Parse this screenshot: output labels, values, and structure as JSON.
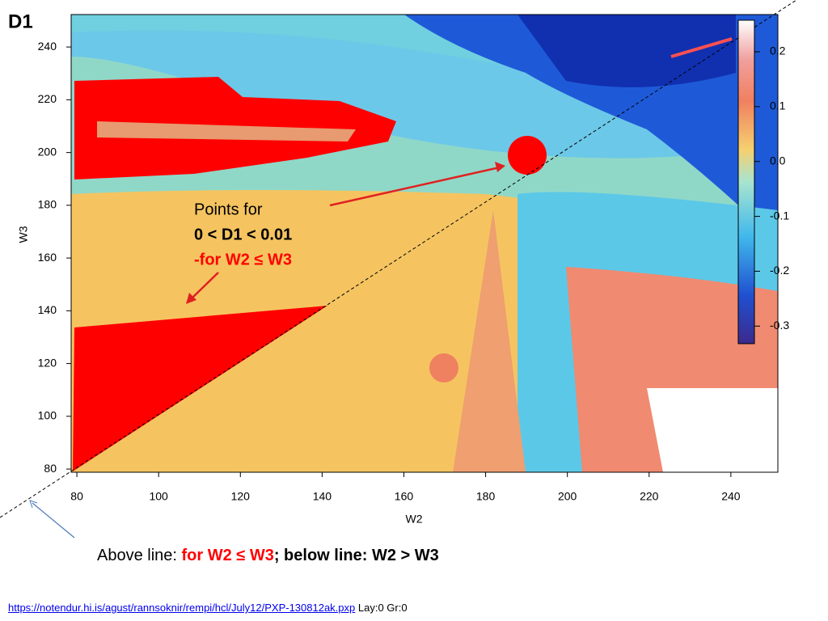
{
  "chart_data": {
    "type": "heatmap",
    "title": "D1",
    "xlabel": "W2",
    "ylabel": "W3",
    "xlim": [
      78.6,
      251.5
    ],
    "xticks": [
      80,
      100,
      120,
      140,
      160,
      180,
      200,
      220,
      240
    ],
    "ylim": [
      78.8,
      252.3
    ],
    "yticks": [
      80,
      100,
      120,
      140,
      160,
      180,
      200,
      220,
      240
    ],
    "colorbar": {
      "lim": [
        -0.332,
        0.2575
      ],
      "ticks": [
        0.2,
        0.1,
        {
          "value": 0,
          "label": "0.0"
        },
        -0.1,
        -0.2,
        -0.3
      ]
    },
    "annotations": [
      "Points for",
      "0 < D1 < 0.01",
      "-for W2 ≤ W3"
    ]
  },
  "caption": [
    "Above line: ",
    "for W2 ≤ W3",
    "; below line: W2 > W3"
  ],
  "footer": {
    "link": "https://notendur.hi.is/agust/rannsoknir/rempi/hcl/July12/PXP-130812ak.pxp",
    "note": "Lay:0 Gr:0"
  }
}
